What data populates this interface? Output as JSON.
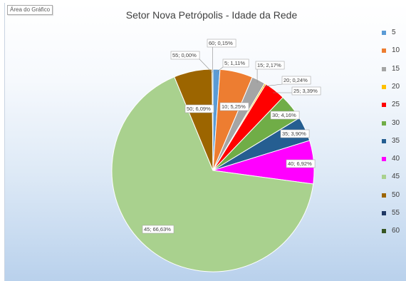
{
  "area_tag": "Área do Gráfico",
  "chart_data": {
    "type": "pie",
    "title": "Setor Nova Petrópolis - Idade da Rede",
    "legend_position": "right",
    "slices": [
      {
        "name": "5",
        "percent": 1.11,
        "label": "5; 1,11%",
        "color": "#5b9bd5"
      },
      {
        "name": "10",
        "percent": 5.25,
        "label": "10; 5,25%",
        "color": "#ed7d31"
      },
      {
        "name": "15",
        "percent": 2.17,
        "label": "15; 2,17%",
        "color": "#a5a5a5"
      },
      {
        "name": "20",
        "percent": 0.24,
        "label": "20; 0,24%",
        "color": "#ffc000"
      },
      {
        "name": "25",
        "percent": 3.39,
        "label": "25; 3,39%",
        "color": "#ff0000"
      },
      {
        "name": "30",
        "percent": 4.16,
        "label": "30; 4,16%",
        "color": "#70ad47"
      },
      {
        "name": "35",
        "percent": 3.9,
        "label": "35; 3,90%",
        "color": "#255e91"
      },
      {
        "name": "40",
        "percent": 6.92,
        "label": "40; 6,92%",
        "color": "#ff00ff"
      },
      {
        "name": "45",
        "percent": 66.63,
        "label": "45; 66,63%",
        "color": "#a9d18e"
      },
      {
        "name": "50",
        "percent": 6.09,
        "label": "50; 6,09%",
        "color": "#9c6500"
      },
      {
        "name": "55",
        "percent": 0.0,
        "label": "55; 0,00%",
        "color": "#1f3864"
      },
      {
        "name": "60",
        "percent": 0.15,
        "label": "60; 0,15%",
        "color": "#375623"
      }
    ]
  }
}
